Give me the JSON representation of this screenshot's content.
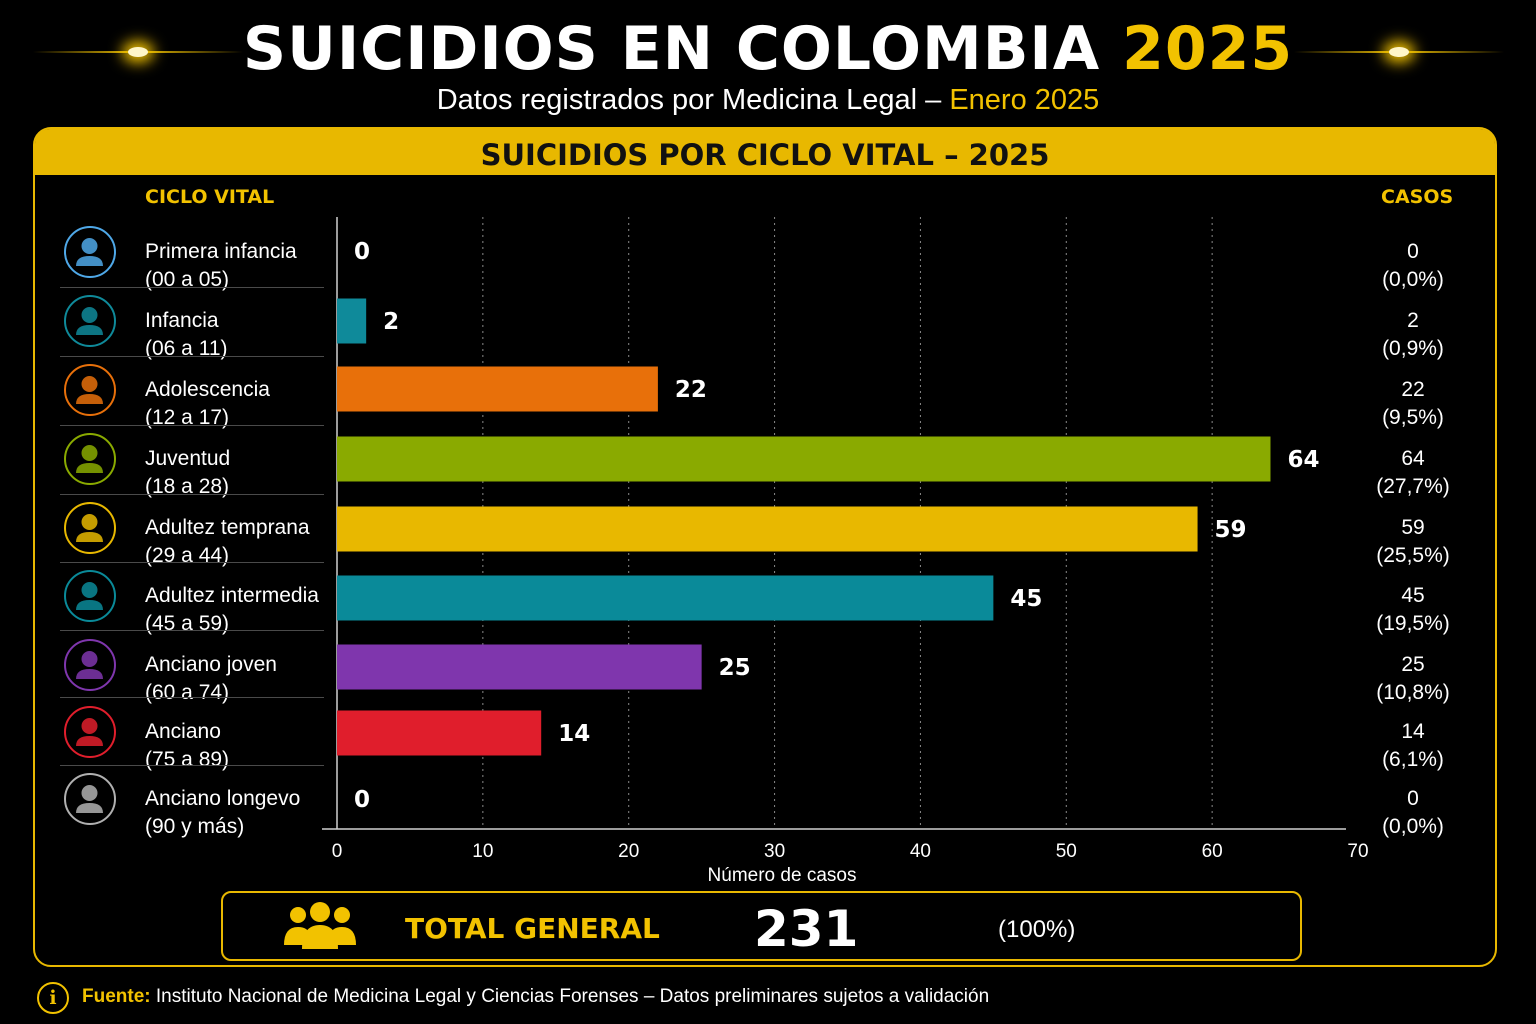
{
  "header": {
    "title_main": "SUICIDIOS EN COLOMBIA",
    "title_year": "2025",
    "subtitle_main": "Datos registrados por Medicina Legal –",
    "subtitle_highlight": "Enero 2025"
  },
  "panel": {
    "title": "SUICIDIOS POR CICLO VITAL – 2025",
    "col_left": "CICLO VITAL",
    "col_right": "CASOS"
  },
  "rows": [
    {
      "name": "Primera infancia",
      "range": "(00 a 05)",
      "value_label": "0",
      "casos": "0",
      "pct": "(0,0%)"
    },
    {
      "name": "Infancia",
      "range": "(06 a 11)",
      "value_label": "2",
      "casos": "2",
      "pct": "(0,9%)"
    },
    {
      "name": "Adolescencia",
      "range": "(12 a 17)",
      "value_label": "22",
      "casos": "22",
      "pct": "(9,5%)"
    },
    {
      "name": "Juventud",
      "range": "(18 a 28)",
      "value_label": "64",
      "casos": "64",
      "pct": "(27,7%)"
    },
    {
      "name": "Adultez temprana",
      "range": "(29 a 44)",
      "value_label": "59",
      "casos": "59",
      "pct": "(25,5%)"
    },
    {
      "name": "Adultez intermedia",
      "range": "(45 a 59)",
      "value_label": "45",
      "casos": "45",
      "pct": "(19,5%)"
    },
    {
      "name": "Anciano joven",
      "range": "(60 a 74)",
      "value_label": "25",
      "casos": "25",
      "pct": "(10,8%)"
    },
    {
      "name": "Anciano",
      "range": "(75 a 89)",
      "value_label": "14",
      "casos": "14",
      "pct": "(6,1%)"
    },
    {
      "name": "Anciano longevo",
      "range": "(90 y más)",
      "value_label": "0",
      "casos": "0",
      "pct": "(0,0%)"
    }
  ],
  "chart_data": {
    "type": "bar",
    "orientation": "horizontal",
    "title": "SUICIDIOS POR CICLO VITAL – 2025",
    "xlabel": "Número de casos",
    "ylabel": "CICLO VITAL",
    "xlim": [
      0,
      70
    ],
    "xticks": [
      "0",
      "10",
      "20",
      "30",
      "40",
      "50",
      "60",
      "70"
    ],
    "grid": "vertical dotted",
    "categories": [
      "Primera infancia",
      "Infancia",
      "Adolescencia",
      "Juventud",
      "Adultez temprana",
      "Adultez intermedia",
      "Anciano joven",
      "Anciano",
      "Anciano longevo"
    ],
    "values": [
      0,
      2,
      22,
      64,
      59,
      45,
      25,
      14,
      0
    ],
    "colors": [
      "#4fa8e8",
      "#0f8a9a",
      "#e8700a",
      "#8aaa00",
      "#e8b800",
      "#0a8a99",
      "#7f36ad",
      "#e01e2c",
      "#b0b0b0"
    ]
  },
  "total": {
    "label": "TOTAL GENERAL",
    "value": "231",
    "pct": "(100%)"
  },
  "footer": {
    "source_label": "Fuente:",
    "source_text": "Instituto Nacional de Medicina Legal y Ciencias Forenses – Datos preliminares sujetos a validación"
  },
  "icons": {
    "row_icons": [
      "baby-icon",
      "child-icon",
      "teen-icon",
      "young-adult-icon",
      "adult-icon",
      "middle-adult-icon",
      "elderly-woman-icon",
      "elderly-icon",
      "oldest-elderly-icon"
    ],
    "total_icon": "people-group-icon",
    "footer_icon": "info-icon"
  }
}
